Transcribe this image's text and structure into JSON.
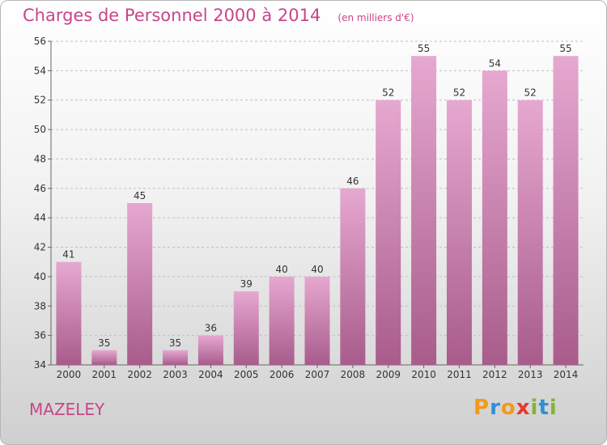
{
  "header": {
    "title": "Charges de Personnel 2000 à 2014",
    "subtitle": "(en milliers d'€)"
  },
  "footer": {
    "commune": "MAZELEY",
    "logo": {
      "letters": [
        "P",
        "r",
        "o",
        "x",
        "i",
        "t",
        "i"
      ],
      "colors": [
        "#f29a1a",
        "#2f8fd6",
        "#f29a1a",
        "#e8372c",
        "#83b534",
        "#2f8fd6",
        "#83b534"
      ]
    }
  },
  "colors": {
    "accent": "#c8458c",
    "bar_top": "#e6a8d0",
    "bar_bottom": "#a85c8c",
    "grid": "#c0c0c0"
  },
  "chart_data": {
    "type": "bar",
    "categories": [
      "2000",
      "2001",
      "2002",
      "2003",
      "2004",
      "2005",
      "2006",
      "2007",
      "2008",
      "2009",
      "2010",
      "2011",
      "2012",
      "2013",
      "2014"
    ],
    "values": [
      41,
      35,
      45,
      35,
      36,
      39,
      40,
      40,
      46,
      52,
      55,
      52,
      54,
      52,
      55
    ],
    "yticks": [
      34,
      36,
      38,
      40,
      42,
      44,
      46,
      48,
      50,
      52,
      54,
      56
    ],
    "ylim": [
      34,
      56
    ],
    "grid": true
  }
}
